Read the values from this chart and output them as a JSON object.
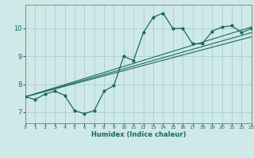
{
  "xlabel": "Humidex (Indice chaleur)",
  "ylabel": "",
  "bg_color": "#cfe8e8",
  "grid_color": "#aacece",
  "line_color": "#1a6b5a",
  "x_min": 0,
  "x_max": 23,
  "y_min": 6.6,
  "y_max": 10.85,
  "curve_x": [
    0,
    1,
    2,
    3,
    4,
    5,
    6,
    7,
    8,
    9,
    10,
    11,
    12,
    13,
    14,
    15,
    16,
    17,
    18,
    19,
    20,
    21,
    22,
    23
  ],
  "curve_y": [
    7.55,
    7.45,
    7.65,
    7.75,
    7.6,
    7.05,
    6.95,
    7.05,
    7.75,
    7.95,
    9.0,
    8.85,
    9.85,
    10.4,
    10.55,
    10.0,
    10.0,
    9.45,
    9.45,
    9.9,
    10.05,
    10.1,
    9.85,
    10.0
  ],
  "line1_x": [
    0,
    23
  ],
  "line1_y": [
    7.55,
    10.05
  ],
  "line2_x": [
    0,
    23
  ],
  "line2_y": [
    7.55,
    9.85
  ],
  "line3_x": [
    0,
    23
  ],
  "line3_y": [
    7.55,
    9.7
  ],
  "yticks": [
    7,
    8,
    9,
    10
  ],
  "xticks": [
    0,
    1,
    2,
    3,
    4,
    5,
    6,
    7,
    8,
    9,
    10,
    11,
    12,
    13,
    14,
    15,
    16,
    17,
    18,
    19,
    20,
    21,
    22,
    23
  ]
}
